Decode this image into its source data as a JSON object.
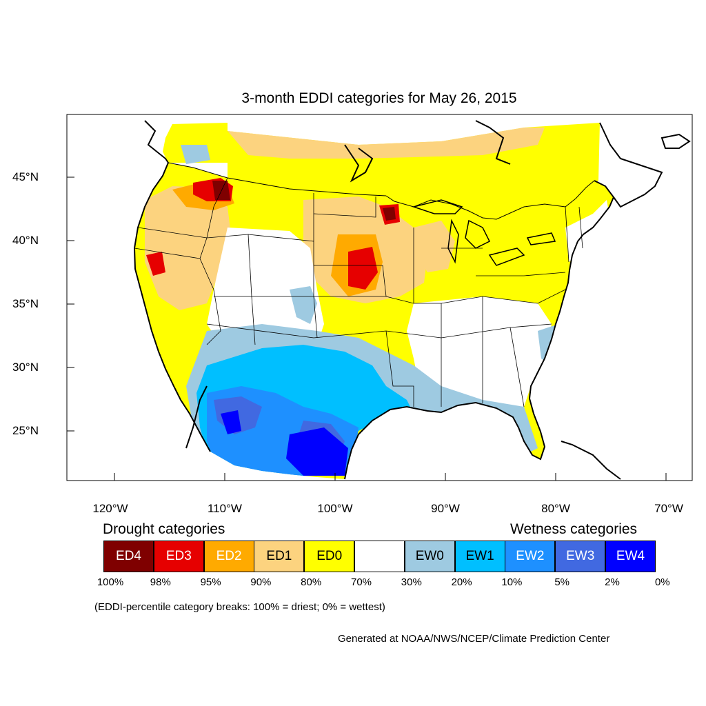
{
  "title": "3-month EDDI categories for May 26, 2015",
  "lat_labels": [
    "45°N",
    "40°N",
    "35°N",
    "30°N",
    "25°N"
  ],
  "lon_labels": [
    "120°W",
    "110°W",
    "100°W",
    "90°W",
    "80°W",
    "70°W"
  ],
  "legend": {
    "drought_heading": "Drought categories",
    "wetness_heading": "Wetness categories",
    "categories": [
      {
        "label": "ED4",
        "color": "#7f0000",
        "text_color": "#ffffff"
      },
      {
        "label": "ED3",
        "color": "#e60000",
        "text_color": "#ffffff"
      },
      {
        "label": "ED2",
        "color": "#ffaa00",
        "text_color": "#ffffff"
      },
      {
        "label": "ED1",
        "color": "#fcd37f",
        "text_color": "#000000"
      },
      {
        "label": "ED0",
        "color": "#ffff00",
        "text_color": "#000000"
      },
      {
        "label": "",
        "color": "#ffffff",
        "text_color": "#000000"
      },
      {
        "label": "EW0",
        "color": "#9ecae1",
        "text_color": "#000000"
      },
      {
        "label": "EW1",
        "color": "#00bfff",
        "text_color": "#000000"
      },
      {
        "label": "EW2",
        "color": "#1e90ff",
        "text_color": "#ffffff"
      },
      {
        "label": "EW3",
        "color": "#4169e1",
        "text_color": "#ffffff"
      },
      {
        "label": "EW4",
        "color": "#0000ff",
        "text_color": "#ffffff"
      }
    ],
    "breaks": [
      "100%",
      "98%",
      "95%",
      "90%",
      "80%",
      "70%",
      "30%",
      "20%",
      "10%",
      "5%",
      "2%",
      "0%"
    ]
  },
  "note": "(EDDI-percentile category breaks: 100% = driest; 0% = wettest)",
  "credit": "Generated at NOAA/NWS/NCEP/Climate Prediction Center"
}
